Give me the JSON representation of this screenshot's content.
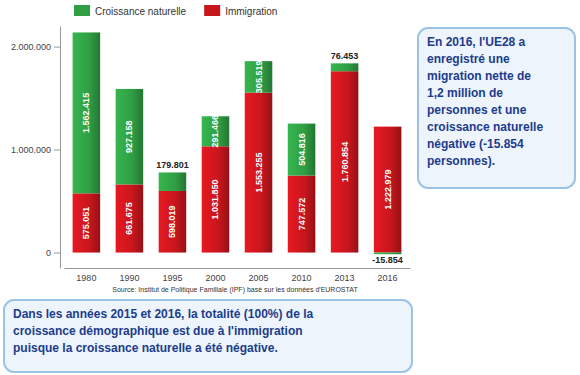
{
  "chart_data": {
    "type": "bar",
    "stacked": true,
    "categories": [
      "1980",
      "1990",
      "1995",
      "2000",
      "2005",
      "2010",
      "2013",
      "2016"
    ],
    "series": [
      {
        "name": "Immigration",
        "color": "#c8161d",
        "values": [
          575051,
          661675,
          598019,
          1031850,
          1553255,
          747572,
          1760854,
          1222979
        ],
        "value_labels": [
          "575.051",
          "661.675",
          "598.019",
          "1.031.850",
          "1.553.255",
          "747.572",
          "1.760.854",
          "1.222.979"
        ]
      },
      {
        "name": "Croissance naturelle",
        "color": "#2f9e44",
        "values": [
          1562415,
          927158,
          179801,
          291466,
          305519,
          504816,
          76453,
          -15854
        ],
        "value_labels": [
          "1.562.415",
          "927.158",
          "179.801",
          "291.466",
          "305.519",
          "504.816",
          "76.453",
          "-15.854"
        ]
      }
    ],
    "ylim": [
      -150000,
      2200000
    ],
    "yticks": [
      0,
      {
        "value": 1000000,
        "label": "1.000.000"
      },
      {
        "value": 2000000,
        "label": "2.000.000"
      }
    ],
    "data_labels": true,
    "grid": false,
    "legend": "top-left",
    "source": "Source: Institut de Politique Familiale (IPF) basé sur les données d'EUROSTAT",
    "annotations": [
      {
        "lines": [
          "En 2016, l'UE28 a",
          "enregistré une",
          "migration nette de",
          "1,2 million de",
          "personnes et une",
          "croissance naturelle",
          "négative (-15.854",
          "personnes)."
        ]
      },
      {
        "lines": [
          "Dans les années 2015 et 2016, la totalité (100%) de la",
          "croissance démographique est due à l'immigration",
          "puisque la croissance naturelle a été négative."
        ]
      }
    ]
  }
}
